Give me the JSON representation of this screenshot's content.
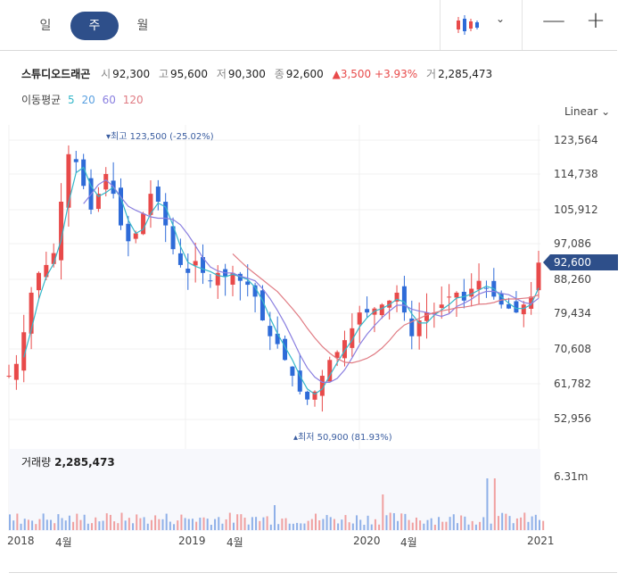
{
  "tabs": [
    {
      "label": "일",
      "active": false
    },
    {
      "label": "주",
      "active": true
    },
    {
      "label": "월",
      "active": false
    }
  ],
  "toolbar": {
    "zoom_out": "—",
    "zoom_in": "+",
    "chart_type_icon": "candlestick-icon",
    "chevron": "⌄"
  },
  "stock": {
    "name": "스튜디오드래곤",
    "open_label": "시",
    "open": "92,300",
    "high_label": "고",
    "high": "95,600",
    "low_label": "저",
    "low": "90,300",
    "close_label": "종",
    "close": "92,600",
    "change": "▲3,500",
    "change_pct": "+3.93%",
    "volume_label": "거",
    "volume": "2,285,473"
  },
  "ma": {
    "label": "이동평균",
    "periods": [
      "5",
      "20",
      "60",
      "120"
    ],
    "colors": [
      "#35b7c9",
      "#5aa0e0",
      "#8a7fe0",
      "#e07b83"
    ]
  },
  "scale": "Linear ⌄",
  "annotations": {
    "high": "▾최고 123,500 (-25.02%)",
    "low": "▴최저 50,900 (81.93%)"
  },
  "current_price": "92,600",
  "volume_panel": {
    "label": "거래량",
    "value": "2,285,473",
    "axis": "6.31m"
  },
  "chart_data": {
    "type": "candlestick",
    "y_ticks": [
      "123,564",
      "114,738",
      "105,912",
      "97,086",
      "88,260",
      "79,434",
      "70,608",
      "61,782",
      "52,956"
    ],
    "x_ticks": [
      "2018",
      "4월",
      "2019",
      "4월",
      "2020",
      "4월",
      "2021"
    ],
    "close_series": [
      64000,
      67000,
      75000,
      85000,
      90000,
      92000,
      95000,
      108000,
      120000,
      118000,
      112000,
      106000,
      110000,
      115000,
      110000,
      102000,
      98000,
      100000,
      105000,
      110000,
      108000,
      102000,
      96000,
      92000,
      90000,
      93000,
      90000,
      88000,
      90000,
      89000,
      90000,
      88000,
      87000,
      84000,
      78000,
      74000,
      72000,
      68000,
      64000,
      60000,
      58000,
      60000,
      64000,
      68000,
      70000,
      73000,
      76000,
      80000,
      80000,
      81000,
      82000,
      83000,
      85000,
      80000,
      74000,
      78000,
      80000,
      80000,
      82000,
      84000,
      85000,
      83000,
      86000,
      88000,
      86000,
      84000,
      82000,
      81000,
      80000,
      82000,
      84000,
      92600
    ],
    "high": "123,500",
    "low": "50,900",
    "volume_max": "6.31m"
  }
}
